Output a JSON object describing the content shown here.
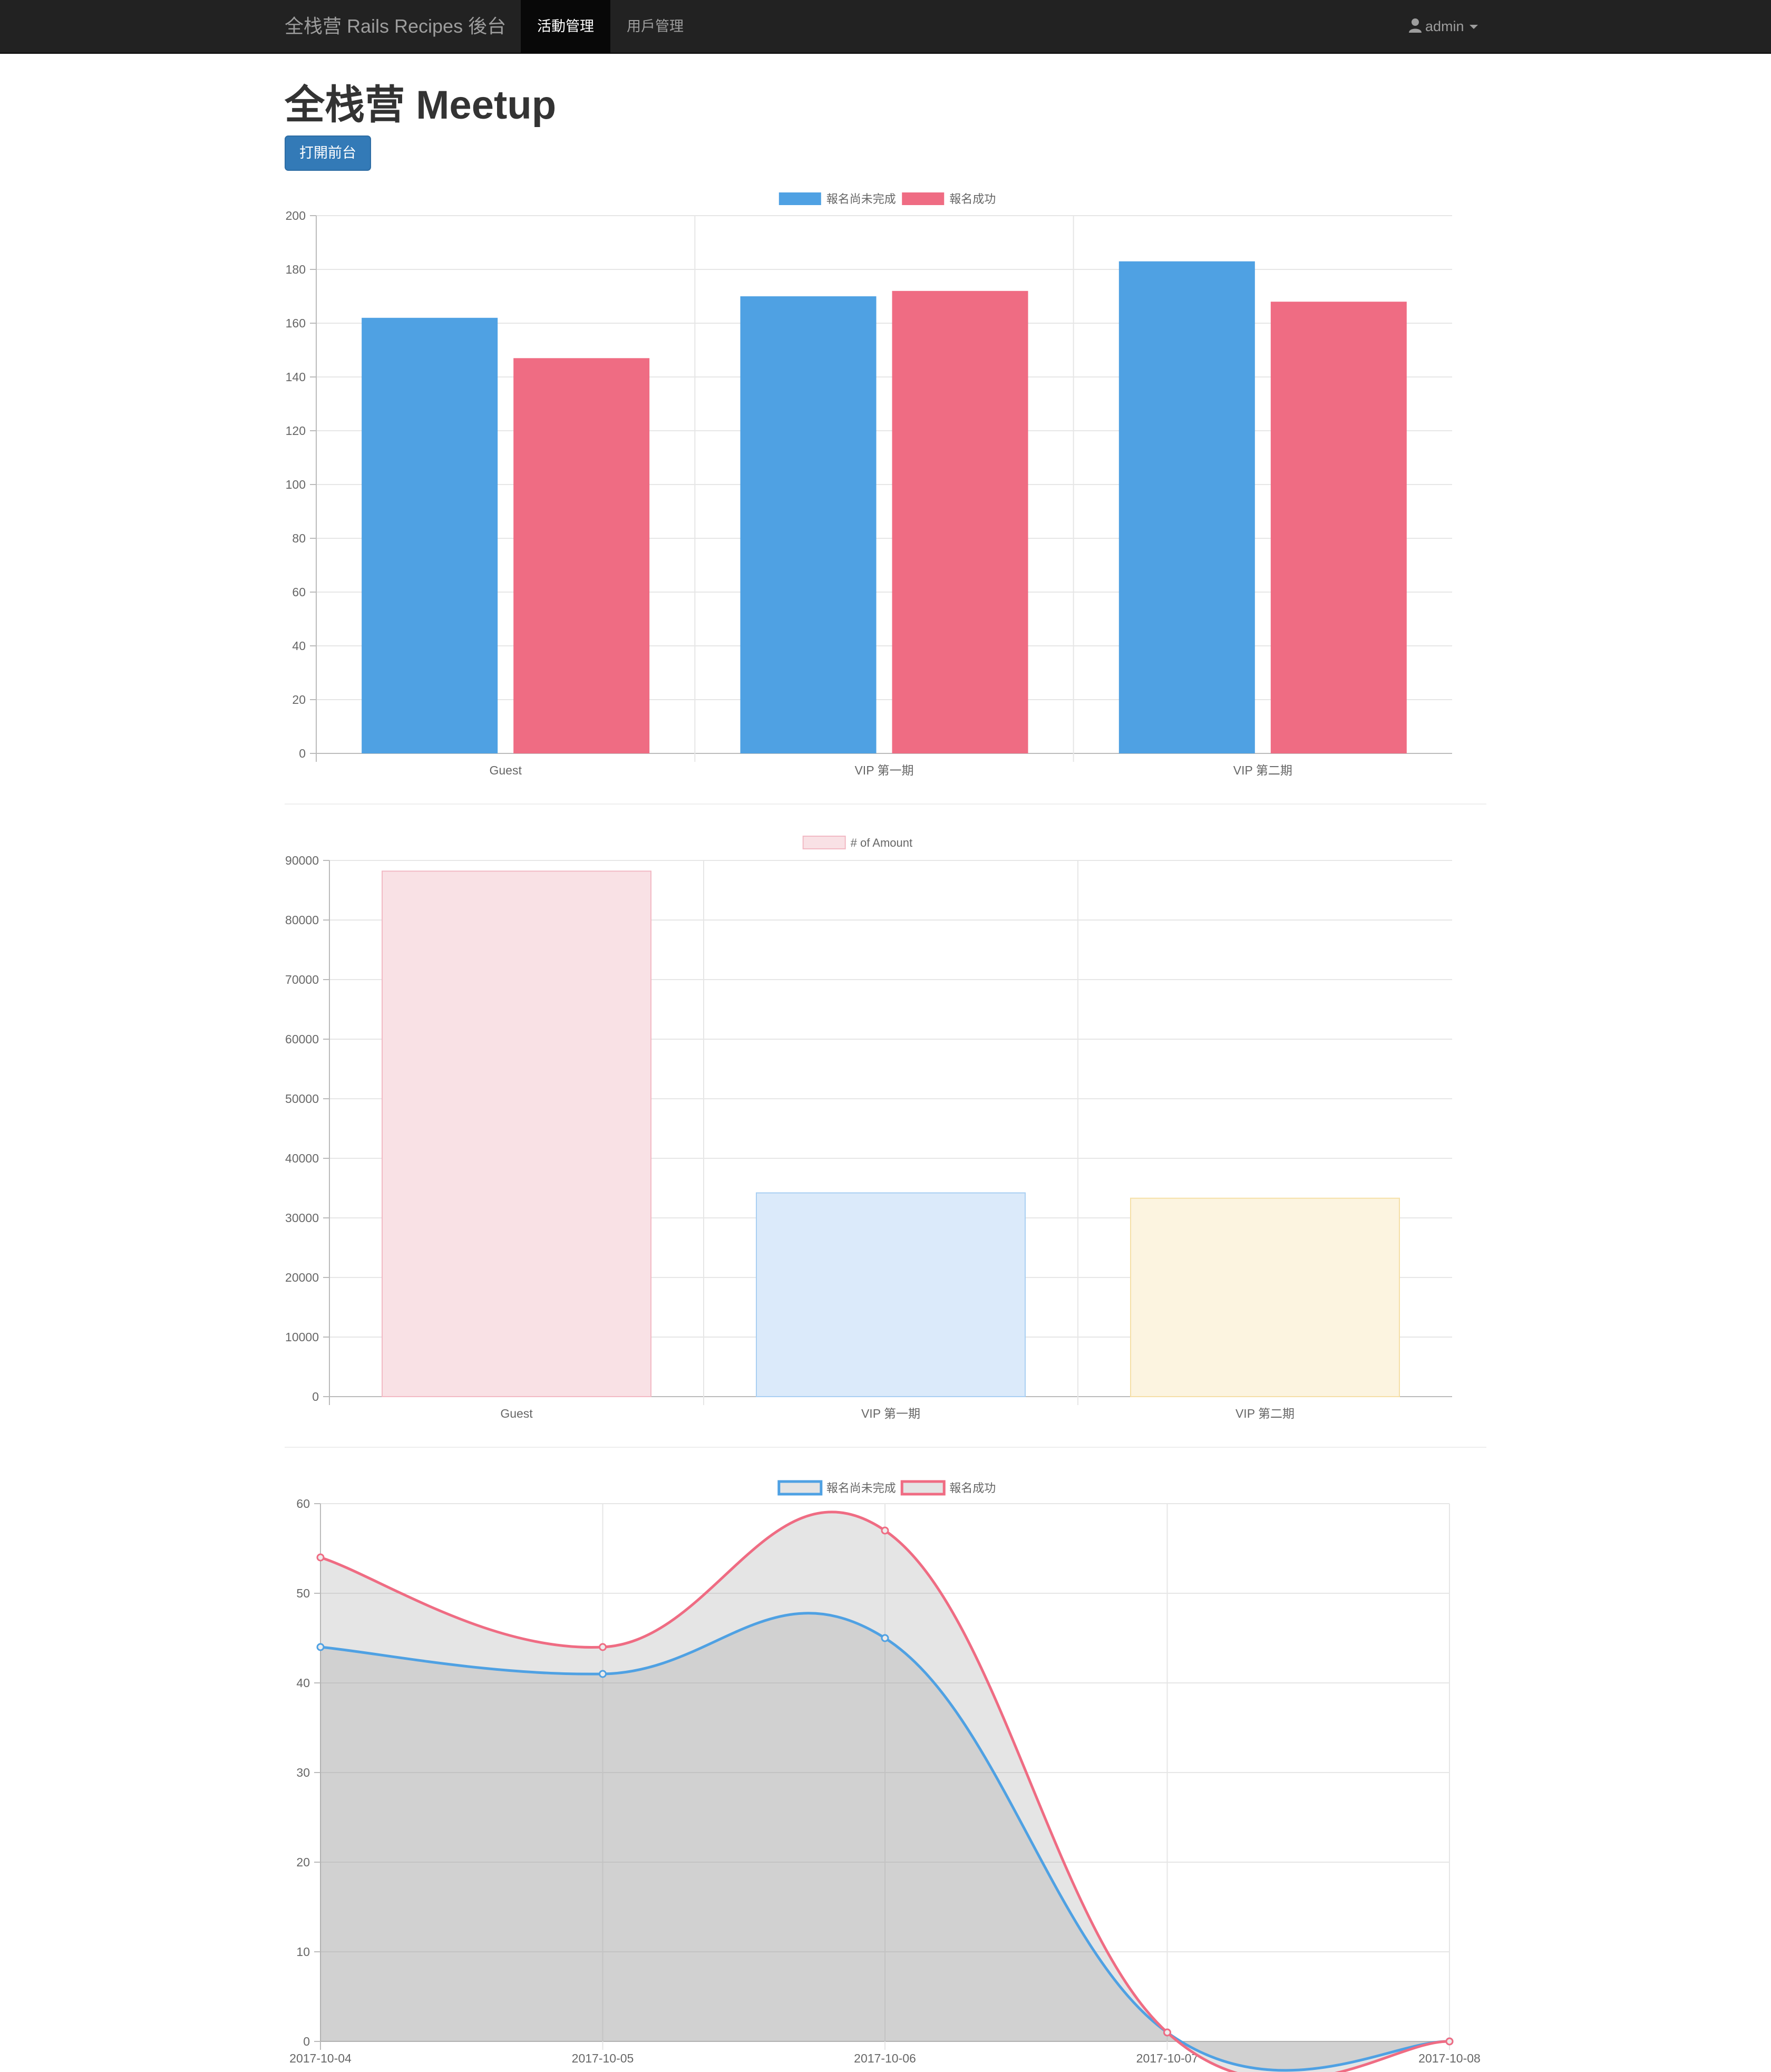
{
  "navbar": {
    "brand": "全栈营 Rails Recipes 後台",
    "items": [
      {
        "label": "活動管理",
        "active": true
      },
      {
        "label": "用戶管理",
        "active": false
      }
    ],
    "user": {
      "icon": "user-icon",
      "label": "admin",
      "caret_icon": "caret-down-icon"
    }
  },
  "page": {
    "title": "全栈营 Meetup",
    "open_frontend_button": "打開前台"
  },
  "colors": {
    "blue": "#4fa1e3",
    "red": "#ef6c83",
    "pink_fill": "#f9e1e5",
    "pink_border": "#f2b9c4",
    "lightblue_fill": "#dbeafa",
    "lightblue_border": "#a9cff2",
    "yellow_fill": "#fcf4e0",
    "yellow_border": "#f5dfa7",
    "area_fill": "rgba(150,150,150,0.25)"
  },
  "chart_data": [
    {
      "type": "bar",
      "categories": [
        "Guest",
        "VIP 第一期",
        "VIP 第二期"
      ],
      "series": [
        {
          "name": "報名尚未完成",
          "values": [
            162,
            170,
            183
          ],
          "color": "#4fa1e3"
        },
        {
          "name": "報名成功",
          "values": [
            147,
            172,
            168
          ],
          "color": "#ef6c83"
        }
      ],
      "ylim": [
        0,
        200
      ],
      "yticks": [
        "0",
        "20",
        "40",
        "60",
        "80",
        "100",
        "120",
        "140",
        "160",
        "180",
        "200"
      ],
      "grid": true,
      "legend": "top-center"
    },
    {
      "type": "bar",
      "categories": [
        "Guest",
        "VIP 第一期",
        "VIP 第二期"
      ],
      "series": [
        {
          "name": "# of Amount",
          "values": [
            88200,
            34200,
            33300
          ]
        }
      ],
      "bar_colors": [
        "#f9e1e5",
        "#dbeafa",
        "#fcf4e0"
      ],
      "ylim": [
        0,
        90000
      ],
      "yticks": [
        "0",
        "10000",
        "20000",
        "30000",
        "40000",
        "50000",
        "60000",
        "70000",
        "80000",
        "90000"
      ],
      "grid": true,
      "legend": "top-center"
    },
    {
      "type": "area",
      "x": [
        "2017-10-04",
        "2017-10-05",
        "2017-10-06",
        "2017-10-07",
        "2017-10-08"
      ],
      "series": [
        {
          "name": "報名尚未完成",
          "values": [
            44,
            41,
            45,
            1,
            0
          ],
          "color": "#4fa1e3"
        },
        {
          "name": "報名成功",
          "values": [
            54,
            44,
            57,
            1,
            0
          ],
          "color": "#ef6c83"
        }
      ],
      "ylim": [
        0,
        60
      ],
      "yticks": [
        "0",
        "10",
        "20",
        "30",
        "40",
        "50",
        "60"
      ],
      "grid": true,
      "legend": "top-center"
    }
  ]
}
